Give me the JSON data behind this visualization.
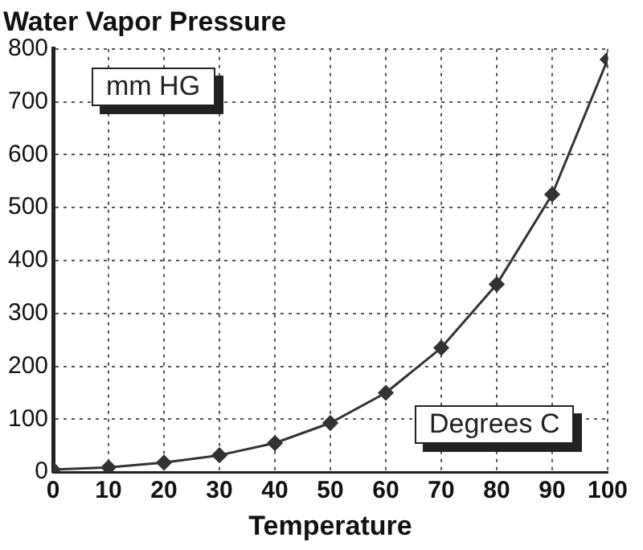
{
  "chart_data": {
    "type": "line",
    "title": "Water Vapor Pressure",
    "xlabel": "Temperature",
    "ylabel": "mm HG",
    "annotations": [
      "Degrees C"
    ],
    "x": [
      0,
      10,
      20,
      30,
      40,
      50,
      60,
      70,
      80,
      90,
      100
    ],
    "series": [
      {
        "color": "#333333",
        "values": [
          5,
          9,
          18,
          32,
          55,
          93,
          150,
          235,
          355,
          525,
          780
        ]
      }
    ],
    "xlim": [
      0,
      100
    ],
    "xticks": [
      0,
      10,
      20,
      30,
      40,
      50,
      60,
      70,
      80,
      90,
      100
    ],
    "ylim": [
      0,
      800
    ],
    "yticks": [
      0,
      100,
      200,
      300,
      400,
      500,
      600,
      700,
      800
    ],
    "grid": true,
    "legend": false,
    "marker": "diamond",
    "line_style": "solid"
  }
}
